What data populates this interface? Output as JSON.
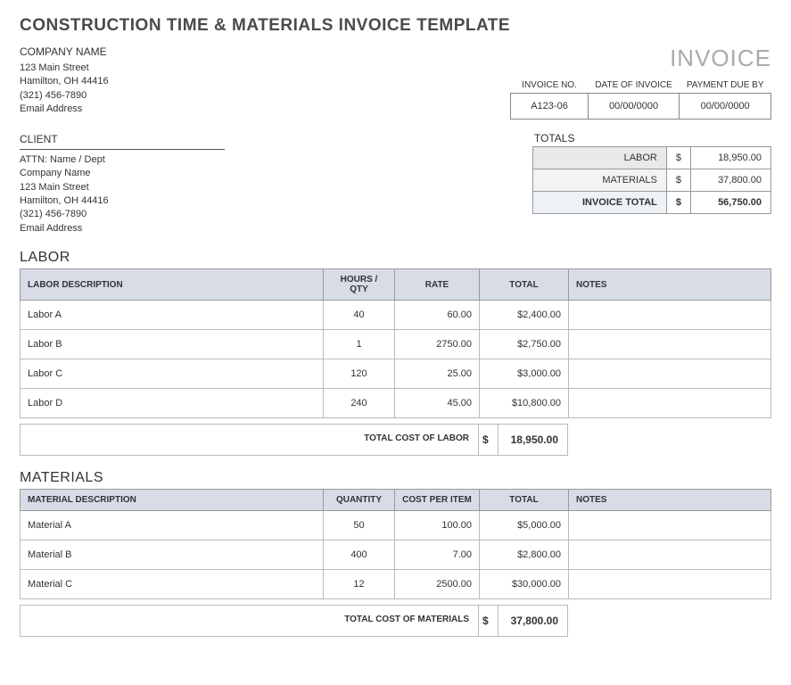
{
  "title": "CONSTRUCTION TIME & MATERIALS INVOICE TEMPLATE",
  "invoice_word": "INVOICE",
  "company": {
    "name": "COMPANY NAME",
    "street": "123 Main Street",
    "citystate": "Hamilton, OH  44416",
    "phone": "(321) 456-7890",
    "email": "Email Address"
  },
  "meta": {
    "headers": {
      "no": "INVOICE NO.",
      "date": "DATE OF INVOICE",
      "due": "PAYMENT DUE BY"
    },
    "values": {
      "no": "A123-06",
      "date": "00/00/0000",
      "due": "00/00/0000"
    }
  },
  "client": {
    "label": "CLIENT",
    "attn": "ATTN: Name / Dept",
    "company": "Company Name",
    "street": "123 Main Street",
    "citystate": "Hamilton, OH  44416",
    "phone": "(321) 456-7890",
    "email": "Email Address"
  },
  "totals": {
    "label": "TOTALS",
    "labor_label": "LABOR",
    "labor_value": "18,950.00",
    "materials_label": "MATERIALS",
    "materials_value": "37,800.00",
    "grand_label": "INVOICE TOTAL",
    "grand_value": "56,750.00",
    "currency": "$"
  },
  "labor": {
    "section_title": "LABOR",
    "headers": {
      "desc": "LABOR DESCRIPTION",
      "qty": "HOURS / QTY",
      "rate": "RATE",
      "total": "TOTAL",
      "notes": "NOTES"
    },
    "rows": [
      {
        "desc": "Labor A",
        "qty": "40",
        "rate": "60.00",
        "total": "$2,400.00",
        "notes": ""
      },
      {
        "desc": "Labor B",
        "qty": "1",
        "rate": "2750.00",
        "total": "$2,750.00",
        "notes": ""
      },
      {
        "desc": "Labor C",
        "qty": "120",
        "rate": "25.00",
        "total": "$3,000.00",
        "notes": ""
      },
      {
        "desc": "Labor D",
        "qty": "240",
        "rate": "45.00",
        "total": "$10,800.00",
        "notes": ""
      }
    ],
    "subtotal_label": "TOTAL COST OF LABOR",
    "subtotal_value": "18,950.00",
    "currency": "$"
  },
  "materials": {
    "section_title": "MATERIALS",
    "headers": {
      "desc": "MATERIAL DESCRIPTION",
      "qty": "QUANTITY",
      "rate": "COST PER ITEM",
      "total": "TOTAL",
      "notes": "NOTES"
    },
    "rows": [
      {
        "desc": "Material A",
        "qty": "50",
        "rate": "100.00",
        "total": "$5,000.00",
        "notes": ""
      },
      {
        "desc": "Material B",
        "qty": "400",
        "rate": "7.00",
        "total": "$2,800.00",
        "notes": ""
      },
      {
        "desc": "Material C",
        "qty": "12",
        "rate": "2500.00",
        "total": "$30,000.00",
        "notes": ""
      }
    ],
    "subtotal_label": "TOTAL COST OF MATERIALS",
    "subtotal_value": "37,800.00",
    "currency": "$"
  }
}
